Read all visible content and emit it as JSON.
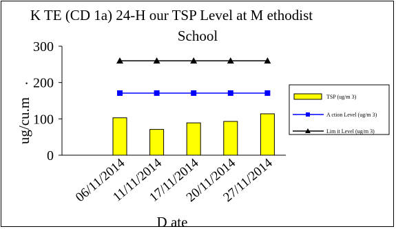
{
  "chart_data": {
    "type": "bar",
    "title_line1": "K TE (CD 1a) 24-H our TSP Level at M ethodist",
    "title_line2": "School",
    "xlabel": "D ate",
    "ylabel": "ug/cu.m",
    "ylabel_dot": ".",
    "ylim": [
      0,
      300
    ],
    "yticks": [
      "0",
      "100",
      "200",
      "300"
    ],
    "categories": [
      "06/11/2014",
      "11/11/2014",
      "17/11/2014",
      "20/11/2014",
      "27/11/2014"
    ],
    "series": [
      {
        "name": "TSP (ug/m 3)",
        "type": "bar",
        "values": [
          103,
          71,
          89,
          93,
          114
        ],
        "color": "#FFFF00",
        "stroke": "#000000"
      },
      {
        "name": "A ction Level (ug/m 3)",
        "type": "line",
        "values": [
          171,
          171,
          171,
          171,
          171
        ],
        "color": "#0000FF",
        "marker": "square"
      },
      {
        "name": "Lim it Level (ug/m 3)",
        "type": "line",
        "values": [
          260,
          260,
          260,
          260,
          260
        ],
        "color": "#000000",
        "marker": "triangle"
      }
    ],
    "grid": false,
    "legend": "right"
  }
}
